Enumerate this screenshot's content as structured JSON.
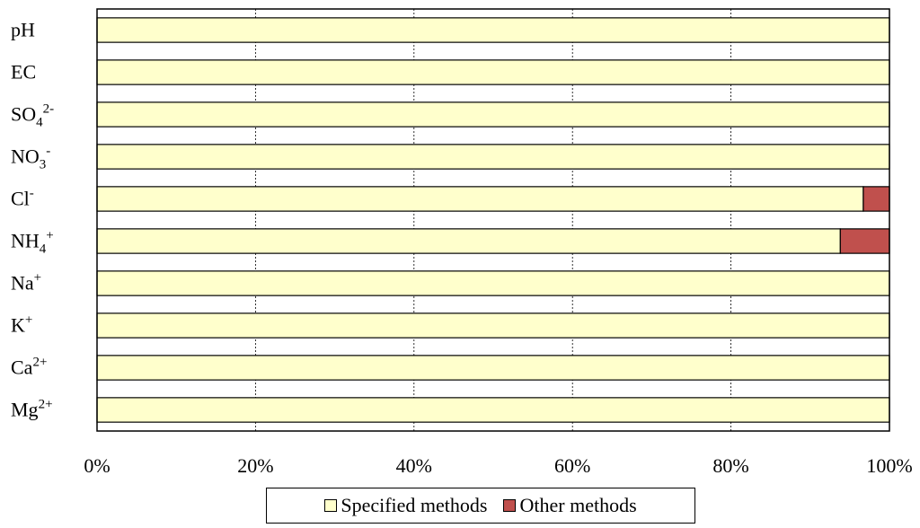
{
  "chart_data": {
    "type": "bar",
    "orientation": "horizontal",
    "stacked": true,
    "percent": true,
    "categories": [
      {
        "base": "pH",
        "sub": "",
        "sup": ""
      },
      {
        "base": "EC",
        "sub": "",
        "sup": ""
      },
      {
        "base": "SO",
        "sub": "4",
        "sup": "2-"
      },
      {
        "base": "NO",
        "sub": "3",
        "sup": "-"
      },
      {
        "base": "Cl",
        "sub": "",
        "sup": "-"
      },
      {
        "base": "NH",
        "sub": "4",
        "sup": "+"
      },
      {
        "base": "Na",
        "sub": "",
        "sup": "+"
      },
      {
        "base": "K",
        "sub": "",
        "sup": "+"
      },
      {
        "base": "Ca",
        "sub": "",
        "sup": "2+"
      },
      {
        "base": "Mg",
        "sub": "",
        "sup": "2+"
      }
    ],
    "series": [
      {
        "name": "Specified methods",
        "color": "#ffffcc",
        "values": [
          100,
          100,
          100,
          100,
          96.7,
          93.8,
          100,
          100,
          100,
          100
        ]
      },
      {
        "name": "Other methods",
        "color": "#c0504d",
        "values": [
          0,
          0,
          0,
          0,
          3.3,
          6.2,
          0,
          0,
          0,
          0
        ]
      }
    ],
    "xticks": [
      "0%",
      "20%",
      "40%",
      "60%",
      "80%",
      "100%"
    ],
    "xlim": [
      0,
      100
    ],
    "grid": "vertical dashed",
    "legend_position": "bottom"
  }
}
